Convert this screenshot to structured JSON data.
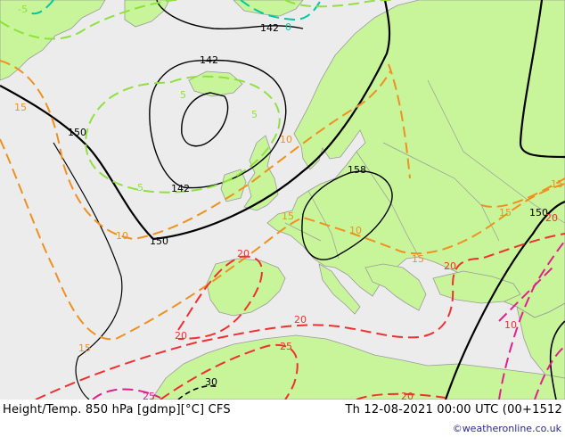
{
  "footer": {
    "title": "Height/Temp. 850 hPa [gdmp][°C] CFS",
    "valid_time": "Th 12-08-2021 00:00 UTC (00+1512",
    "credit": "©weatheronline.co.uk"
  },
  "colors": {
    "sea": "#ececec",
    "land": "#c8f59a",
    "border": "#9a9a9a",
    "height_contour": "#000000",
    "temp_minus5": "#00c8a0",
    "temp_0": "#00c8a0",
    "temp_5": "#90e040",
    "temp_10": "#f09020",
    "temp_15": "#f09020",
    "temp_20": "#f03030",
    "temp_25": "#f03030",
    "temp_30": "#e0208c"
  },
  "height_labels": [
    "142",
    "142",
    "142",
    "150",
    "150",
    "150",
    "158"
  ],
  "temp_labels": [
    "-5",
    "0",
    "5",
    "5",
    "5",
    "10",
    "10",
    "10",
    "15",
    "15",
    "15",
    "15",
    "15",
    "15",
    "20",
    "20",
    "20",
    "20",
    "20",
    "25",
    "25",
    "30",
    "20",
    "10"
  ]
}
